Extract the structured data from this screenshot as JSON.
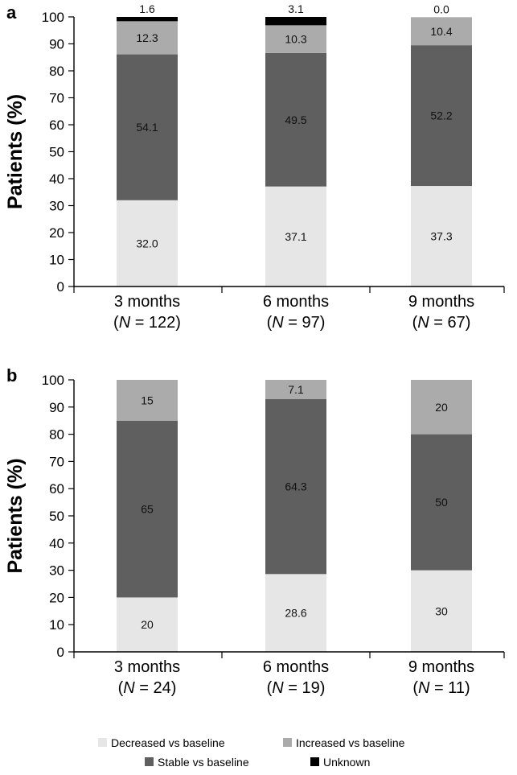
{
  "colors": {
    "decreased": "#e6e6e6",
    "stable": "#5f5f5f",
    "increased": "#ababab",
    "unknown": "#000000",
    "axis": "#000000"
  },
  "chart_data": [
    {
      "type": "bar",
      "stacked": true,
      "panel_label": "a",
      "ylabel": "Patients (%)",
      "ylim": [
        0,
        100
      ],
      "yticks": [
        0,
        10,
        20,
        30,
        40,
        50,
        60,
        70,
        80,
        90,
        100
      ],
      "categories": [
        {
          "name": "3 months",
          "n_prefix": "(",
          "n_letter": "N",
          "n_suffix": " = 122)"
        },
        {
          "name": "6 months",
          "n_prefix": "(",
          "n_letter": "N",
          "n_suffix": " = 97)"
        },
        {
          "name": "9 months",
          "n_prefix": "(",
          "n_letter": "N",
          "n_suffix": " = 67)"
        }
      ],
      "series": [
        {
          "key": "decreased",
          "name": "Decreased vs baseline",
          "values": [
            32.0,
            37.1,
            37.3
          ],
          "labels": [
            "32.0",
            "37.1",
            "37.3"
          ]
        },
        {
          "key": "stable",
          "name": "Stable vs baseline",
          "values": [
            54.1,
            49.5,
            52.2
          ],
          "labels": [
            "54.1",
            "49.5",
            "52.2"
          ]
        },
        {
          "key": "increased",
          "name": "Increased vs baseline",
          "values": [
            12.3,
            10.3,
            10.4
          ],
          "labels": [
            "12.3",
            "10.3",
            "10.4"
          ]
        },
        {
          "key": "unknown",
          "name": "Unknown",
          "values": [
            1.6,
            3.1,
            0.0
          ],
          "labels": [
            "1.6",
            "3.1",
            "0.0"
          ]
        }
      ]
    },
    {
      "type": "bar",
      "stacked": true,
      "panel_label": "b",
      "ylabel": "Patients (%)",
      "ylim": [
        0,
        100
      ],
      "yticks": [
        0,
        10,
        20,
        30,
        40,
        50,
        60,
        70,
        80,
        90,
        100
      ],
      "categories": [
        {
          "name": "3 months",
          "n_prefix": "(",
          "n_letter": "N",
          "n_suffix": " = 24)"
        },
        {
          "name": "6 months",
          "n_prefix": "(",
          "n_letter": "N",
          "n_suffix": " = 19)"
        },
        {
          "name": "9 months",
          "n_prefix": "(",
          "n_letter": "N",
          "n_suffix": " = 11)"
        }
      ],
      "series": [
        {
          "key": "decreased",
          "name": "Decreased vs baseline",
          "values": [
            20,
            28.6,
            30
          ],
          "labels": [
            "20",
            "28.6",
            "30"
          ]
        },
        {
          "key": "stable",
          "name": "Stable vs baseline",
          "values": [
            65,
            64.3,
            50
          ],
          "labels": [
            "65",
            "64.3",
            "50"
          ]
        },
        {
          "key": "increased",
          "name": "Increased vs baseline",
          "values": [
            15,
            7.1,
            20
          ],
          "labels": [
            "15",
            "7.1",
            "20"
          ]
        }
      ]
    }
  ],
  "legend": {
    "position": "bottom",
    "items": [
      {
        "key": "decreased",
        "label": "Decreased vs baseline"
      },
      {
        "key": "increased",
        "label": "Increased vs baseline"
      },
      {
        "key": "stable",
        "label": "Stable vs baseline"
      },
      {
        "key": "unknown",
        "label": "Unknown"
      }
    ]
  }
}
